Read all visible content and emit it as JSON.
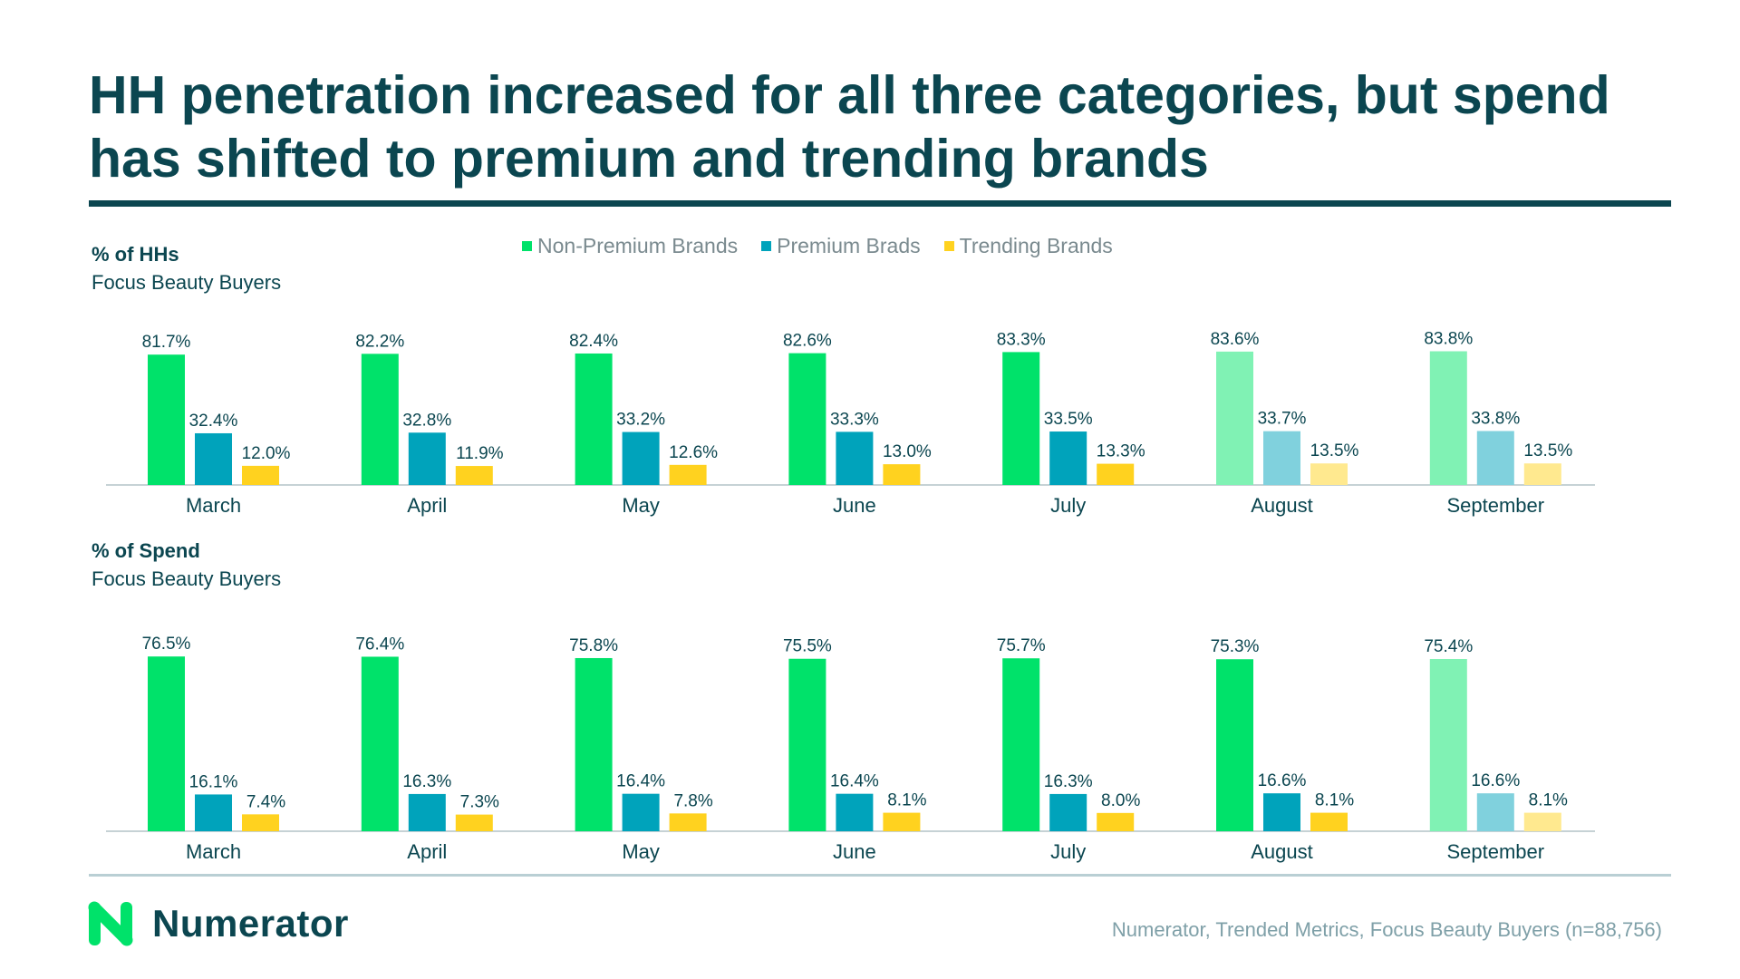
{
  "title": "HH penetration increased for all three categories, but spend has shifted to premium and trending brands",
  "legend": [
    {
      "label": "Non-Premium Brands",
      "color": "#00e26a"
    },
    {
      "label": "Premium Brads",
      "color": "#00a3bb"
    },
    {
      "label": "Trending Brands",
      "color": "#ffd21f"
    }
  ],
  "sections": {
    "hh": {
      "title": "% of HHs",
      "subtitle": "Focus Beauty Buyers"
    },
    "spend": {
      "title": "% of Spend",
      "subtitle": "Focus Beauty Buyers"
    }
  },
  "chart_data": [
    {
      "type": "bar",
      "title": "% of HHs",
      "subtitle": "Focus Beauty Buyers",
      "categories": [
        "March",
        "April",
        "May",
        "June",
        "July",
        "August",
        "September"
      ],
      "series": [
        {
          "name": "Non-Premium Brands",
          "color": "#00e26a",
          "faded_color": "#80f2b4",
          "values": [
            81.7,
            82.2,
            82.4,
            82.6,
            83.3,
            83.6,
            83.8
          ],
          "labels": [
            "81.7%",
            "82.2%",
            "82.4%",
            "82.6%",
            "83.3%",
            "83.6%",
            "83.8%"
          ]
        },
        {
          "name": "Premium Brads",
          "color": "#00a3bb",
          "faded_color": "#80d1dd",
          "values": [
            32.4,
            32.8,
            33.2,
            33.3,
            33.5,
            33.7,
            33.8
          ],
          "labels": [
            "32.4%",
            "32.8%",
            "33.2%",
            "33.3%",
            "33.5%",
            "33.7%",
            "33.8%"
          ]
        },
        {
          "name": "Trending Brands",
          "color": "#ffd21f",
          "faded_color": "#ffe98f",
          "values": [
            12.0,
            11.9,
            12.6,
            13.0,
            13.3,
            13.5,
            13.5
          ],
          "labels": [
            "12.0%",
            "11.9%",
            "12.6%",
            "13.0%",
            "13.3%",
            "13.5%",
            "13.5%"
          ]
        }
      ],
      "faded_categories": [
        "August",
        "September"
      ],
      "ylim": [
        0,
        100
      ]
    },
    {
      "type": "bar",
      "title": "% of Spend",
      "subtitle": "Focus Beauty Buyers",
      "categories": [
        "March",
        "April",
        "May",
        "June",
        "July",
        "August",
        "September"
      ],
      "series": [
        {
          "name": "Non-Premium Brands",
          "color": "#00e26a",
          "faded_color": "#80f2b4",
          "values": [
            76.5,
            76.4,
            75.8,
            75.5,
            75.7,
            75.3,
            75.4
          ],
          "labels": [
            "76.5%",
            "76.4%",
            "75.8%",
            "75.5%",
            "75.7%",
            "75.3%",
            "75.4%"
          ]
        },
        {
          "name": "Premium Brads",
          "color": "#00a3bb",
          "faded_color": "#80d1dd",
          "values": [
            16.1,
            16.3,
            16.4,
            16.4,
            16.3,
            16.6,
            16.6
          ],
          "labels": [
            "16.1%",
            "16.3%",
            "16.4%",
            "16.4%",
            "16.3%",
            "16.6%",
            "16.6%"
          ]
        },
        {
          "name": "Trending Brands",
          "color": "#ffd21f",
          "faded_color": "#ffe98f",
          "values": [
            7.4,
            7.3,
            7.8,
            8.1,
            8.0,
            8.1,
            8.1
          ],
          "labels": [
            "7.4%",
            "7.3%",
            "7.8%",
            "8.1%",
            "8.0%",
            "8.1%",
            "8.1%"
          ]
        }
      ],
      "faded_categories": [
        "September"
      ],
      "ylim": [
        0,
        100
      ]
    }
  ],
  "footer": {
    "brand": "Numerator",
    "source": "Numerator, Trended Metrics, Focus Beauty Buyers (n=88,756)",
    "logo_color": "#00e26a"
  }
}
